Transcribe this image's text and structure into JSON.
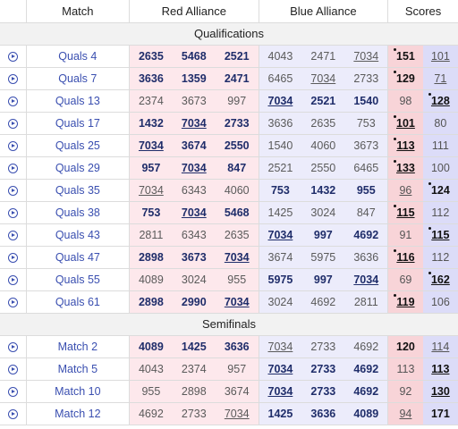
{
  "header": {
    "match": "Match",
    "red": "Red Alliance",
    "blue": "Blue Alliance",
    "scores": "Scores"
  },
  "sections": [
    {
      "title": "Qualifications",
      "rows": [
        {
          "match": "Quals 4",
          "red": [
            {
              "n": "2635",
              "b": true,
              "u": false
            },
            {
              "n": "5468",
              "b": true,
              "u": false
            },
            {
              "n": "2521",
              "b": true,
              "u": false
            }
          ],
          "blue": [
            {
              "n": "4043",
              "b": false,
              "u": false
            },
            {
              "n": "2471",
              "b": false,
              "u": false
            },
            {
              "n": "7034",
              "b": false,
              "u": true
            }
          ],
          "redScore": {
            "v": "151",
            "b": true,
            "u": false,
            "dot": true
          },
          "blueScore": {
            "v": "101",
            "b": false,
            "u": true,
            "dot": false
          }
        },
        {
          "match": "Quals 7",
          "red": [
            {
              "n": "3636",
              "b": true,
              "u": false
            },
            {
              "n": "1359",
              "b": true,
              "u": false
            },
            {
              "n": "2471",
              "b": true,
              "u": false
            }
          ],
          "blue": [
            {
              "n": "6465",
              "b": false,
              "u": false
            },
            {
              "n": "7034",
              "b": false,
              "u": true
            },
            {
              "n": "2733",
              "b": false,
              "u": false
            }
          ],
          "redScore": {
            "v": "129",
            "b": true,
            "u": false,
            "dot": true
          },
          "blueScore": {
            "v": "71",
            "b": false,
            "u": true,
            "dot": false
          }
        },
        {
          "match": "Quals 13",
          "red": [
            {
              "n": "2374",
              "b": false,
              "u": false
            },
            {
              "n": "3673",
              "b": false,
              "u": false
            },
            {
              "n": "997",
              "b": false,
              "u": false
            }
          ],
          "blue": [
            {
              "n": "7034",
              "b": true,
              "u": true
            },
            {
              "n": "2521",
              "b": true,
              "u": false
            },
            {
              "n": "1540",
              "b": true,
              "u": false
            }
          ],
          "redScore": {
            "v": "98",
            "b": false,
            "u": false,
            "dot": false
          },
          "blueScore": {
            "v": "128",
            "b": true,
            "u": true,
            "dot": true
          }
        },
        {
          "match": "Quals 17",
          "red": [
            {
              "n": "1432",
              "b": true,
              "u": false
            },
            {
              "n": "7034",
              "b": true,
              "u": true
            },
            {
              "n": "2733",
              "b": true,
              "u": false
            }
          ],
          "blue": [
            {
              "n": "3636",
              "b": false,
              "u": false
            },
            {
              "n": "2635",
              "b": false,
              "u": false
            },
            {
              "n": "753",
              "b": false,
              "u": false
            }
          ],
          "redScore": {
            "v": "101",
            "b": true,
            "u": true,
            "dot": true
          },
          "blueScore": {
            "v": "80",
            "b": false,
            "u": false,
            "dot": false
          }
        },
        {
          "match": "Quals 25",
          "red": [
            {
              "n": "7034",
              "b": true,
              "u": true
            },
            {
              "n": "3674",
              "b": true,
              "u": false
            },
            {
              "n": "2550",
              "b": true,
              "u": false
            }
          ],
          "blue": [
            {
              "n": "1540",
              "b": false,
              "u": false
            },
            {
              "n": "4060",
              "b": false,
              "u": false
            },
            {
              "n": "3673",
              "b": false,
              "u": false
            }
          ],
          "redScore": {
            "v": "113",
            "b": true,
            "u": true,
            "dot": true
          },
          "blueScore": {
            "v": "111",
            "b": false,
            "u": false,
            "dot": false
          }
        },
        {
          "match": "Quals 29",
          "red": [
            {
              "n": "957",
              "b": true,
              "u": false
            },
            {
              "n": "7034",
              "b": true,
              "u": true
            },
            {
              "n": "847",
              "b": true,
              "u": false
            }
          ],
          "blue": [
            {
              "n": "2521",
              "b": false,
              "u": false
            },
            {
              "n": "2550",
              "b": false,
              "u": false
            },
            {
              "n": "6465",
              "b": false,
              "u": false
            }
          ],
          "redScore": {
            "v": "133",
            "b": true,
            "u": true,
            "dot": true
          },
          "blueScore": {
            "v": "100",
            "b": false,
            "u": false,
            "dot": false
          }
        },
        {
          "match": "Quals 35",
          "red": [
            {
              "n": "7034",
              "b": false,
              "u": true
            },
            {
              "n": "6343",
              "b": false,
              "u": false
            },
            {
              "n": "4060",
              "b": false,
              "u": false
            }
          ],
          "blue": [
            {
              "n": "753",
              "b": true,
              "u": false
            },
            {
              "n": "1432",
              "b": true,
              "u": false
            },
            {
              "n": "955",
              "b": true,
              "u": false
            }
          ],
          "redScore": {
            "v": "96",
            "b": false,
            "u": true,
            "dot": false
          },
          "blueScore": {
            "v": "124",
            "b": true,
            "u": false,
            "dot": true
          }
        },
        {
          "match": "Quals 38",
          "red": [
            {
              "n": "753",
              "b": true,
              "u": false
            },
            {
              "n": "7034",
              "b": true,
              "u": true
            },
            {
              "n": "5468",
              "b": true,
              "u": false
            }
          ],
          "blue": [
            {
              "n": "1425",
              "b": false,
              "u": false
            },
            {
              "n": "3024",
              "b": false,
              "u": false
            },
            {
              "n": "847",
              "b": false,
              "u": false
            }
          ],
          "redScore": {
            "v": "115",
            "b": true,
            "u": true,
            "dot": true
          },
          "blueScore": {
            "v": "112",
            "b": false,
            "u": false,
            "dot": false
          }
        },
        {
          "match": "Quals 43",
          "red": [
            {
              "n": "2811",
              "b": false,
              "u": false
            },
            {
              "n": "6343",
              "b": false,
              "u": false
            },
            {
              "n": "2635",
              "b": false,
              "u": false
            }
          ],
          "blue": [
            {
              "n": "7034",
              "b": true,
              "u": true
            },
            {
              "n": "997",
              "b": true,
              "u": false
            },
            {
              "n": "4692",
              "b": true,
              "u": false
            }
          ],
          "redScore": {
            "v": "91",
            "b": false,
            "u": false,
            "dot": false
          },
          "blueScore": {
            "v": "115",
            "b": true,
            "u": true,
            "dot": true
          }
        },
        {
          "match": "Quals 47",
          "red": [
            {
              "n": "2898",
              "b": true,
              "u": false
            },
            {
              "n": "3673",
              "b": true,
              "u": false
            },
            {
              "n": "7034",
              "b": true,
              "u": true
            }
          ],
          "blue": [
            {
              "n": "3674",
              "b": false,
              "u": false
            },
            {
              "n": "5975",
              "b": false,
              "u": false
            },
            {
              "n": "3636",
              "b": false,
              "u": false
            }
          ],
          "redScore": {
            "v": "116",
            "b": true,
            "u": true,
            "dot": true
          },
          "blueScore": {
            "v": "112",
            "b": false,
            "u": false,
            "dot": false
          }
        },
        {
          "match": "Quals 55",
          "red": [
            {
              "n": "4089",
              "b": false,
              "u": false
            },
            {
              "n": "3024",
              "b": false,
              "u": false
            },
            {
              "n": "955",
              "b": false,
              "u": false
            }
          ],
          "blue": [
            {
              "n": "5975",
              "b": true,
              "u": false
            },
            {
              "n": "997",
              "b": true,
              "u": false
            },
            {
              "n": "7034",
              "b": true,
              "u": true
            }
          ],
          "redScore": {
            "v": "69",
            "b": false,
            "u": false,
            "dot": false
          },
          "blueScore": {
            "v": "162",
            "b": true,
            "u": true,
            "dot": true
          }
        },
        {
          "match": "Quals 61",
          "red": [
            {
              "n": "2898",
              "b": true,
              "u": false
            },
            {
              "n": "2990",
              "b": true,
              "u": false
            },
            {
              "n": "7034",
              "b": true,
              "u": true
            }
          ],
          "blue": [
            {
              "n": "3024",
              "b": false,
              "u": false
            },
            {
              "n": "4692",
              "b": false,
              "u": false
            },
            {
              "n": "2811",
              "b": false,
              "u": false
            }
          ],
          "redScore": {
            "v": "119",
            "b": true,
            "u": true,
            "dot": true
          },
          "blueScore": {
            "v": "106",
            "b": false,
            "u": false,
            "dot": false
          }
        }
      ]
    },
    {
      "title": "Semifinals",
      "rows": [
        {
          "match": "Match 2",
          "red": [
            {
              "n": "4089",
              "b": true,
              "u": false
            },
            {
              "n": "1425",
              "b": true,
              "u": false
            },
            {
              "n": "3636",
              "b": true,
              "u": false
            }
          ],
          "blue": [
            {
              "n": "7034",
              "b": false,
              "u": true
            },
            {
              "n": "2733",
              "b": false,
              "u": false
            },
            {
              "n": "4692",
              "b": false,
              "u": false
            }
          ],
          "redScore": {
            "v": "120",
            "b": true,
            "u": false,
            "dot": false
          },
          "blueScore": {
            "v": "114",
            "b": false,
            "u": true,
            "dot": false
          }
        },
        {
          "match": "Match 5",
          "red": [
            {
              "n": "4043",
              "b": false,
              "u": false
            },
            {
              "n": "2374",
              "b": false,
              "u": false
            },
            {
              "n": "957",
              "b": false,
              "u": false
            }
          ],
          "blue": [
            {
              "n": "7034",
              "b": true,
              "u": true
            },
            {
              "n": "2733",
              "b": true,
              "u": false
            },
            {
              "n": "4692",
              "b": true,
              "u": false
            }
          ],
          "redScore": {
            "v": "113",
            "b": false,
            "u": false,
            "dot": false
          },
          "blueScore": {
            "v": "113",
            "b": true,
            "u": true,
            "dot": false
          }
        },
        {
          "match": "Match 10",
          "red": [
            {
              "n": "955",
              "b": false,
              "u": false
            },
            {
              "n": "2898",
              "b": false,
              "u": false
            },
            {
              "n": "3674",
              "b": false,
              "u": false
            }
          ],
          "blue": [
            {
              "n": "7034",
              "b": true,
              "u": true
            },
            {
              "n": "2733",
              "b": true,
              "u": false
            },
            {
              "n": "4692",
              "b": true,
              "u": false
            }
          ],
          "redScore": {
            "v": "92",
            "b": false,
            "u": false,
            "dot": false
          },
          "blueScore": {
            "v": "130",
            "b": true,
            "u": true,
            "dot": false
          }
        },
        {
          "match": "Match 12",
          "red": [
            {
              "n": "4692",
              "b": false,
              "u": false
            },
            {
              "n": "2733",
              "b": false,
              "u": false
            },
            {
              "n": "7034",
              "b": false,
              "u": true
            }
          ],
          "blue": [
            {
              "n": "1425",
              "b": true,
              "u": false
            },
            {
              "n": "3636",
              "b": true,
              "u": false
            },
            {
              "n": "4089",
              "b": true,
              "u": false
            }
          ],
          "redScore": {
            "v": "94",
            "b": false,
            "u": true,
            "dot": false
          },
          "blueScore": {
            "v": "171",
            "b": true,
            "u": false,
            "dot": false
          }
        }
      ]
    }
  ]
}
